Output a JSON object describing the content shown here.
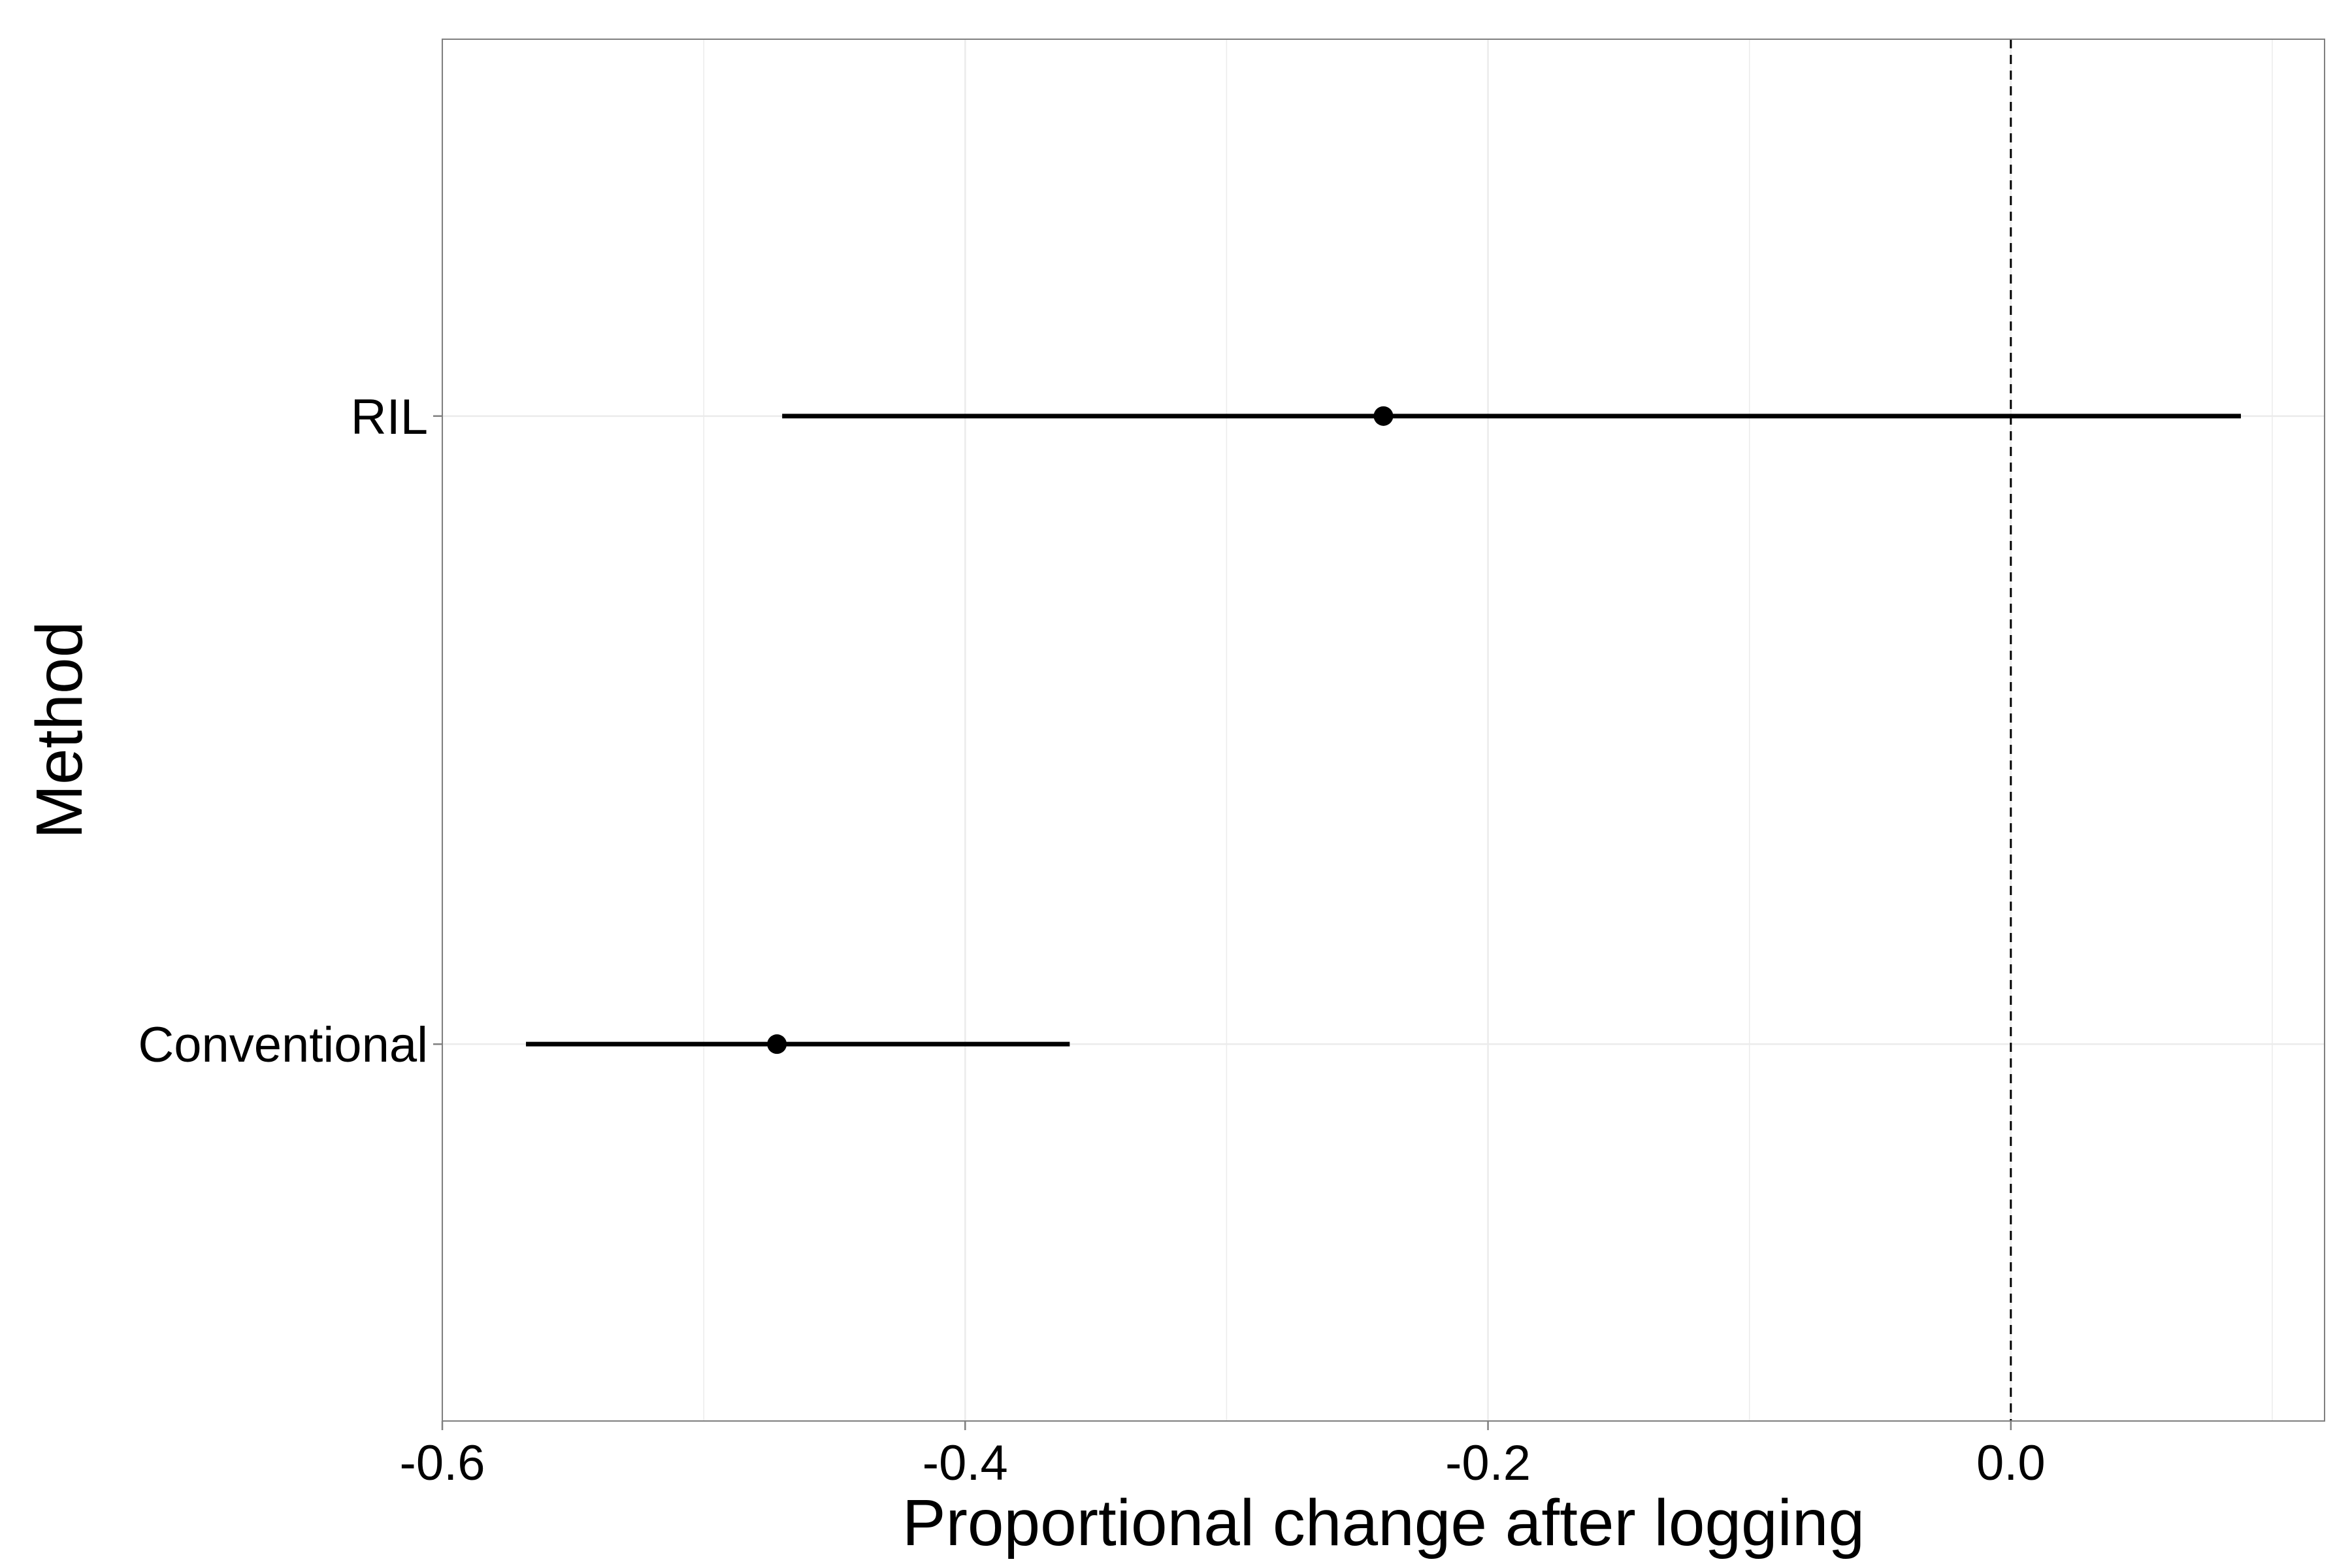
{
  "chart_data": {
    "type": "point-range",
    "title": "",
    "xlabel": "Proportional change after logging",
    "ylabel": "Method",
    "xlim": [
      -0.6,
      0.12
    ],
    "x_ticks": [
      -0.6,
      -0.4,
      -0.2,
      0.0
    ],
    "x_tick_labels": [
      "-0.6",
      "-0.4",
      "-0.2",
      "0.0"
    ],
    "minor_x_gridlines": [
      -0.5,
      -0.3,
      -0.1,
      0.1
    ],
    "categories": [
      "Conventional",
      "RIL"
    ],
    "points": [
      {
        "category": "RIL",
        "estimate": -0.24,
        "lower": -0.47,
        "upper": 0.088
      },
      {
        "category": "Conventional",
        "estimate": -0.472,
        "lower": -0.568,
        "upper": -0.36
      }
    ],
    "reference_line": {
      "x": 0.0,
      "style": "dashed"
    },
    "grid": true,
    "legend": "none",
    "colors": {
      "points": "#000000",
      "grid": "#ebebeb",
      "panel_border": "#7f7f7f"
    }
  }
}
